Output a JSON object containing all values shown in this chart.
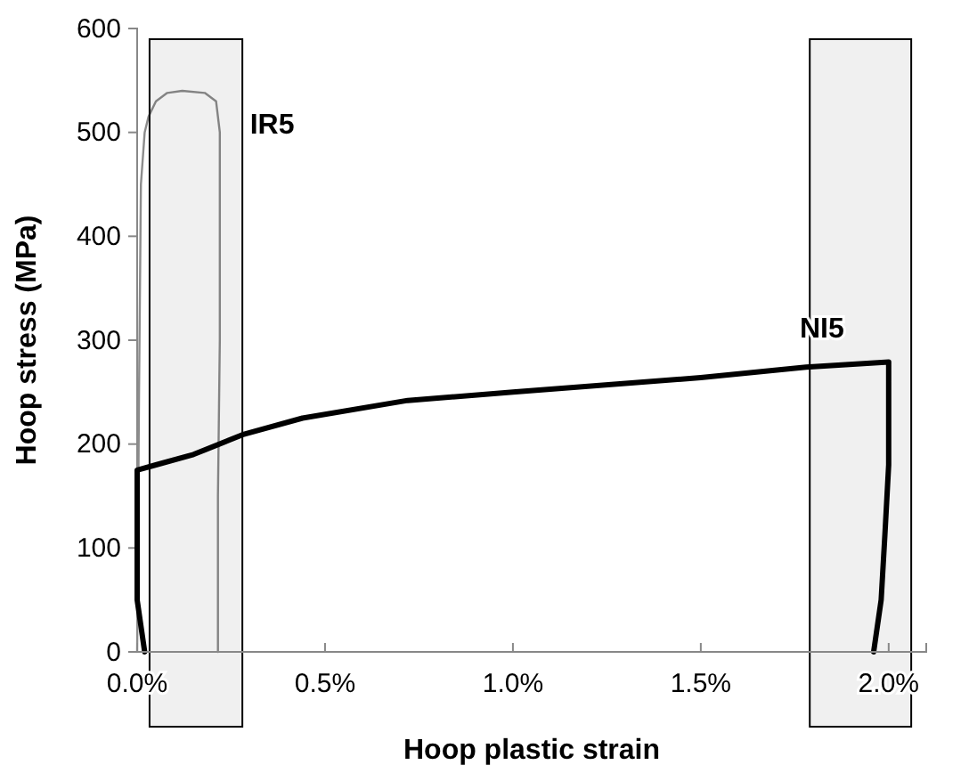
{
  "chart_data": {
    "type": "line",
    "xlabel": "Hoop plastic strain",
    "ylabel": "Hoop stress (MPa)",
    "xlim": [
      0,
      2.1
    ],
    "xticks": [
      {
        "value": 0,
        "label": "0.0%"
      },
      {
        "value": 0.5,
        "label": "0.5%"
      },
      {
        "value": 1,
        "label": "1.0%"
      },
      {
        "value": 1.5,
        "label": "1.5%"
      },
      {
        "value": 2,
        "label": "2.0%"
      }
    ],
    "ylim": [
      0,
      600
    ],
    "yticks": [
      0,
      100,
      200,
      300,
      400,
      500,
      600
    ],
    "grid": false,
    "marker": "none",
    "line_style": "solid",
    "series": [
      {
        "name": "IR5",
        "color": "#8c8c8c",
        "x": [
          0,
          0.005,
          0.01,
          0.02,
          0.03,
          0.05,
          0.08,
          0.12,
          0.18,
          0.21,
          0.22,
          0.22,
          0.215,
          0.215
        ],
        "values": [
          0,
          250,
          450,
          500,
          515,
          530,
          538,
          540,
          538,
          530,
          500,
          300,
          150,
          0
        ]
      },
      {
        "name": "NI5",
        "color": "#000000",
        "x": [
          0.02,
          0,
          0,
          0,
          0.05,
          0.15,
          0.28,
          0.44,
          0.72,
          1,
          1.5,
          1.78,
          2,
          2,
          2,
          1.99,
          1.98,
          1.96
        ],
        "values": [
          0,
          50,
          120,
          175,
          180,
          190,
          209,
          225,
          242,
          250,
          264,
          274,
          279,
          260,
          180,
          113,
          50,
          0
        ]
      }
    ],
    "bands": [
      {
        "axis": "x",
        "from": 0.033,
        "to": 0.28,
        "color": "#000000"
      },
      {
        "axis": "x",
        "from": 1.79,
        "to": 2.06,
        "color": "#000000"
      }
    ]
  }
}
